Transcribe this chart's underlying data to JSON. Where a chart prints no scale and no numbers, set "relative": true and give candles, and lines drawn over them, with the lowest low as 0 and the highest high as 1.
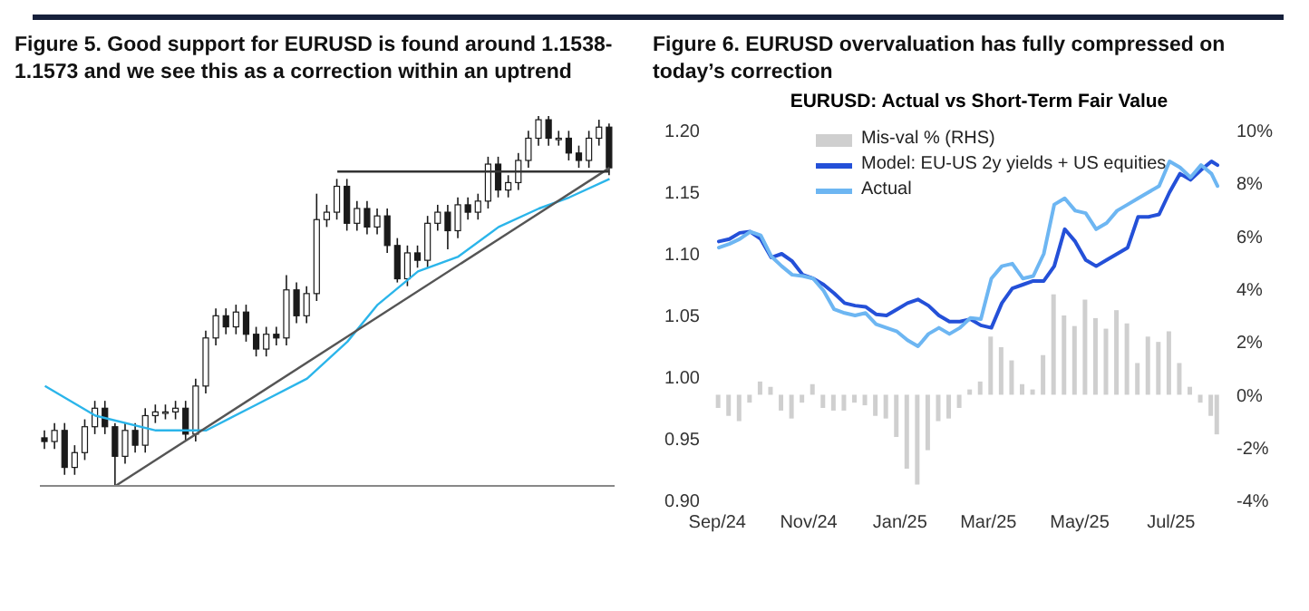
{
  "chart_data": [
    {
      "type": "candlestick",
      "title": "Figure 5. Good support for EURUSD is found around 1.1538-1.1573 and we see this as a correction within an uptrend",
      "relative": true,
      "tick_labels": false,
      "color": "#1a1a1a",
      "categories": [
        null,
        null,
        null,
        null,
        null,
        null,
        null,
        null,
        null,
        null,
        null,
        null,
        null,
        null,
        null,
        null,
        null,
        null,
        null,
        null,
        null,
        null,
        null,
        null,
        null,
        null,
        null,
        null,
        null,
        null,
        null,
        null,
        null,
        null,
        null,
        null,
        null,
        null,
        null,
        null,
        null,
        null,
        null,
        null,
        null,
        null,
        null,
        null,
        null,
        null,
        null,
        null,
        null,
        null,
        null,
        null,
        null
      ],
      "ohlc": [
        [
          0.13,
          0.15,
          0.1,
          0.12
        ],
        [
          0.12,
          0.17,
          0.1,
          0.15
        ],
        [
          0.15,
          0.17,
          0.03,
          0.05
        ],
        [
          0.05,
          0.11,
          0.03,
          0.09
        ],
        [
          0.09,
          0.18,
          0.07,
          0.16
        ],
        [
          0.16,
          0.23,
          0.14,
          0.21
        ],
        [
          0.21,
          0.23,
          0.14,
          0.16
        ],
        [
          0.16,
          0.17,
          0,
          0.08
        ],
        [
          0.08,
          0.17,
          0.06,
          0.15
        ],
        [
          0.15,
          0.17,
          0.09,
          0.11
        ],
        [
          0.11,
          0.21,
          0.09,
          0.19
        ],
        [
          0.19,
          0.22,
          0.17,
          0.2
        ],
        [
          0.2,
          0.22,
          0.18,
          0.2
        ],
        [
          0.2,
          0.23,
          0.18,
          0.21
        ],
        [
          0.21,
          0.23,
          0.12,
          0.14
        ],
        [
          0.14,
          0.29,
          0.12,
          0.27
        ],
        [
          0.27,
          0.42,
          0.25,
          0.4
        ],
        [
          0.4,
          0.48,
          0.38,
          0.46
        ],
        [
          0.46,
          0.48,
          0.41,
          0.43
        ],
        [
          0.43,
          0.49,
          0.41,
          0.47
        ],
        [
          0.47,
          0.49,
          0.39,
          0.41
        ],
        [
          0.41,
          0.43,
          0.35,
          0.37
        ],
        [
          0.37,
          0.43,
          0.35,
          0.41
        ],
        [
          0.41,
          0.43,
          0.38,
          0.4
        ],
        [
          0.4,
          0.57,
          0.38,
          0.53
        ],
        [
          0.53,
          0.55,
          0.44,
          0.46
        ],
        [
          0.46,
          0.54,
          0.44,
          0.52
        ],
        [
          0.52,
          0.79,
          0.5,
          0.72
        ],
        [
          0.72,
          0.76,
          0.7,
          0.74
        ],
        [
          0.74,
          0.83,
          0.72,
          0.81
        ],
        [
          0.81,
          0.83,
          0.69,
          0.71
        ],
        [
          0.71,
          0.77,
          0.69,
          0.75
        ],
        [
          0.75,
          0.77,
          0.68,
          0.7
        ],
        [
          0.7,
          0.75,
          0.68,
          0.73
        ],
        [
          0.73,
          0.75,
          0.63,
          0.65
        ],
        [
          0.65,
          0.67,
          0.55,
          0.56
        ],
        [
          0.56,
          0.65,
          0.54,
          0.63
        ],
        [
          0.63,
          0.65,
          0.59,
          0.61
        ],
        [
          0.61,
          0.73,
          0.59,
          0.71
        ],
        [
          0.71,
          0.76,
          0.69,
          0.74
        ],
        [
          0.74,
          0.76,
          0.64,
          0.69
        ],
        [
          0.69,
          0.78,
          0.67,
          0.76
        ],
        [
          0.76,
          0.78,
          0.72,
          0.74
        ],
        [
          0.74,
          0.79,
          0.72,
          0.77
        ],
        [
          0.77,
          0.89,
          0.75,
          0.87
        ],
        [
          0.87,
          0.89,
          0.78,
          0.8
        ],
        [
          0.8,
          0.84,
          0.78,
          0.82
        ],
        [
          0.82,
          0.9,
          0.8,
          0.88
        ],
        [
          0.88,
          0.96,
          0.86,
          0.94
        ],
        [
          0.94,
          1,
          0.92,
          0.99
        ],
        [
          0.99,
          1,
          0.92,
          0.94
        ],
        [
          0.94,
          0.96,
          0.92,
          0.94
        ],
        [
          0.94,
          0.96,
          0.88,
          0.9
        ],
        [
          0.9,
          0.92,
          0.86,
          0.88
        ],
        [
          0.88,
          0.96,
          0.86,
          0.94
        ],
        [
          0.94,
          0.99,
          0.92,
          0.97
        ],
        [
          0.97,
          0.98,
          0.84,
          0.86
        ]
      ],
      "series": [
        {
          "type": "line",
          "color": "#2bb5ea",
          "values": [
            0.27,
            null,
            null,
            null,
            null,
            0.19,
            null,
            null,
            null,
            null,
            null,
            0.15,
            null,
            null,
            null,
            null,
            0.15,
            null,
            null,
            null,
            null,
            0.22,
            null,
            null,
            null,
            null,
            0.29,
            null,
            null,
            null,
            0.39,
            null,
            null,
            0.49,
            null,
            null,
            null,
            0.58,
            null,
            null,
            null,
            0.62,
            null,
            null,
            null,
            0.7,
            null,
            null,
            null,
            0.75,
            null,
            null,
            0.78,
            null,
            null,
            null,
            0.83
          ]
        },
        {
          "type": "line",
          "color": "#555555",
          "values": [
            null,
            null,
            null,
            null,
            null,
            null,
            null,
            0,
            null,
            null,
            null,
            null,
            null,
            null,
            null,
            null,
            null,
            null,
            null,
            null,
            null,
            null,
            null,
            null,
            null,
            null,
            null,
            null,
            null,
            null,
            null,
            null,
            null,
            null,
            null,
            null,
            null,
            null,
            null,
            null,
            null,
            null,
            null,
            null,
            null,
            null,
            null,
            null,
            null,
            null,
            null,
            null,
            null,
            null,
            null,
            null,
            0.86
          ]
        },
        {
          "type": "line",
          "color": "#333333",
          "values": [
            null,
            null,
            null,
            null,
            null,
            null,
            null,
            null,
            null,
            null,
            null,
            null,
            null,
            null,
            null,
            null,
            null,
            null,
            null,
            null,
            null,
            null,
            null,
            null,
            null,
            null,
            null,
            null,
            null,
            0.85,
            null,
            null,
            null,
            null,
            null,
            null,
            null,
            null,
            null,
            null,
            null,
            null,
            null,
            null,
            null,
            null,
            null,
            null,
            null,
            null,
            null,
            null,
            null,
            null,
            null,
            null,
            0.85
          ]
        }
      ]
    },
    {
      "type": "line",
      "title": "Figure 6. EURUSD overvaluation has fully compressed on today’s correction",
      "subtitle": "EURUSD: Actual vs Short-Term Fair Value",
      "legend": "top",
      "x": [
        "2024-09-02",
        "2024-09-09",
        "2024-09-16",
        "2024-09-23",
        "2024-09-30",
        "2024-10-07",
        "2024-10-14",
        "2024-10-21",
        "2024-10-28",
        "2024-11-04",
        "2024-11-11",
        "2024-11-18",
        "2024-11-25",
        "2024-12-02",
        "2024-12-09",
        "2024-12-16",
        "2024-12-23",
        "2024-12-30",
        "2025-01-06",
        "2025-01-13",
        "2025-01-20",
        "2025-01-27",
        "2025-02-03",
        "2025-02-10",
        "2025-02-17",
        "2025-02-24",
        "2025-03-03",
        "2025-03-10",
        "2025-03-17",
        "2025-03-24",
        "2025-03-31",
        "2025-04-07",
        "2025-04-14",
        "2025-04-21",
        "2025-04-28",
        "2025-05-05",
        "2025-05-12",
        "2025-05-19",
        "2025-05-26",
        "2025-06-02",
        "2025-06-09",
        "2025-06-16",
        "2025-06-23",
        "2025-06-30",
        "2025-07-07",
        "2025-07-14",
        "2025-07-21",
        "2025-07-28",
        "2025-08-01"
      ],
      "xlim": [
        "2024-08-30",
        "2025-08-04"
      ],
      "xticks": [
        {
          "value": "2024-09-01",
          "label": "Sep/24"
        },
        {
          "value": "2024-11-01",
          "label": "Nov/24"
        },
        {
          "value": "2025-01-01",
          "label": "Jan/25"
        },
        {
          "value": "2025-03-01",
          "label": "Mar/25"
        },
        {
          "value": "2025-05-01",
          "label": "May/25"
        },
        {
          "value": "2025-07-01",
          "label": "Jul/25"
        }
      ],
      "ylim": [
        0.9,
        1.2
      ],
      "yticks": [
        {
          "value": 0.9,
          "label": "0.90"
        },
        {
          "value": 0.95,
          "label": "0.95"
        },
        {
          "value": 1,
          "label": "1.00"
        },
        {
          "value": 1.05,
          "label": "1.05"
        },
        {
          "value": 1.1,
          "label": "1.10"
        },
        {
          "value": 1.15,
          "label": "1.15"
        },
        {
          "value": 1.2,
          "label": "1.20"
        }
      ],
      "y2lim": [
        -4,
        10
      ],
      "y2ticks": [
        {
          "value": -4,
          "label": "-4%"
        },
        {
          "value": -2,
          "label": "-2%"
        },
        {
          "value": 0,
          "label": "0%"
        },
        {
          "value": 2,
          "label": "2%"
        },
        {
          "value": 4,
          "label": "4%"
        },
        {
          "value": 6,
          "label": "6%"
        },
        {
          "value": 8,
          "label": "8%"
        },
        {
          "value": 10,
          "label": "10%"
        }
      ],
      "series": [
        {
          "type": "bar",
          "name": "Mis-val % (RHS)",
          "axis": "y2",
          "color": "#cfcfcf",
          "values": [
            -0.5,
            -0.8,
            -1.0,
            -0.3,
            0.5,
            0.3,
            -0.6,
            -0.9,
            -0.3,
            0.4,
            -0.5,
            -0.6,
            -0.6,
            -0.3,
            -0.4,
            -0.8,
            -0.9,
            -1.6,
            -2.8,
            -3.4,
            -2.1,
            -1.0,
            -0.9,
            -0.5,
            0.2,
            0.5,
            2.2,
            1.8,
            1.3,
            0.4,
            0.2,
            1.5,
            3.8,
            3.0,
            2.6,
            3.6,
            2.9,
            2.5,
            3.2,
            2.7,
            1.2,
            2.2,
            2.0,
            2.4,
            1.2,
            0.3,
            -0.3,
            -0.8,
            -1.5
          ]
        },
        {
          "type": "line",
          "name": "Model: EU-US 2y yields + US equities",
          "color": "#2450d8",
          "values": [
            1.11,
            1.112,
            1.117,
            1.118,
            1.112,
            1.097,
            1.1,
            1.094,
            1.083,
            1.08,
            1.075,
            1.068,
            1.06,
            1.058,
            1.057,
            1.051,
            1.05,
            1.055,
            1.06,
            1.063,
            1.058,
            1.05,
            1.045,
            1.045,
            1.047,
            1.042,
            1.04,
            1.06,
            1.072,
            1.075,
            1.078,
            1.078,
            1.09,
            1.12,
            1.11,
            1.095,
            1.09,
            1.095,
            1.1,
            1.105,
            1.13,
            1.13,
            1.132,
            1.15,
            1.165,
            1.16,
            1.168,
            1.175,
            1.172
          ]
        },
        {
          "type": "line",
          "name": "Actual",
          "color": "#6db6f2",
          "values": [
            1.105,
            1.108,
            1.112,
            1.118,
            1.115,
            1.098,
            1.09,
            1.083,
            1.082,
            1.08,
            1.07,
            1.055,
            1.052,
            1.05,
            1.052,
            1.043,
            1.04,
            1.037,
            1.03,
            1.025,
            1.035,
            1.04,
            1.035,
            1.04,
            1.048,
            1.047,
            1.08,
            1.09,
            1.092,
            1.08,
            1.082,
            1.1,
            1.14,
            1.145,
            1.135,
            1.133,
            1.12,
            1.125,
            1.135,
            1.14,
            1.145,
            1.15,
            1.155,
            1.175,
            1.17,
            1.162,
            1.172,
            1.165,
            1.155
          ]
        }
      ]
    }
  ]
}
